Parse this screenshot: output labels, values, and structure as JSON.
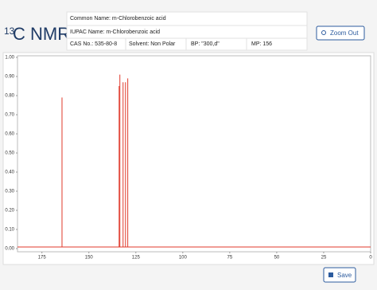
{
  "header": {
    "isotope": "13",
    "title": "C NMR"
  },
  "info": {
    "common_name": "Common Name: m-Chlorobenzoic acid",
    "iupac_name": "IUPAC Name: m-Chlorobenzoic acid",
    "cas": "CAS No.: 535-80-8",
    "solvent": "Solvent: Non Polar",
    "bp": "BP: \"300,d\"",
    "mp": "MP: 156"
  },
  "buttons": {
    "zoom_out": "Zoom Out",
    "save": "Save"
  },
  "chart_data": {
    "type": "stem",
    "color": "#e0392b",
    "x": [
      164.3,
      133.9,
      133.5,
      131.8,
      130.5,
      129.3
    ],
    "values": [
      0.79,
      0.85,
      0.91,
      0.87,
      0.87,
      0.89
    ],
    "xlim": [
      188,
      0
    ],
    "xticks": [
      175,
      150,
      125,
      100,
      75,
      50,
      25,
      0
    ],
    "ylim": [
      0,
      1
    ],
    "yticks": [
      {
        "value": 0,
        "label": "0.00"
      },
      {
        "value": 0.1,
        "label": "0.10"
      },
      {
        "value": 0.2,
        "label": "0.20"
      },
      {
        "value": 0.3,
        "label": "0.30"
      },
      {
        "value": 0.4,
        "label": "0.40"
      },
      {
        "value": 0.5,
        "label": "0.50"
      },
      {
        "value": 0.6,
        "label": "0.60"
      },
      {
        "value": 0.7,
        "label": "0.70"
      },
      {
        "value": 0.8,
        "label": "0.80"
      },
      {
        "value": 0.9,
        "label": "0.90"
      },
      {
        "value": 1,
        "label": "1.00"
      }
    ]
  }
}
